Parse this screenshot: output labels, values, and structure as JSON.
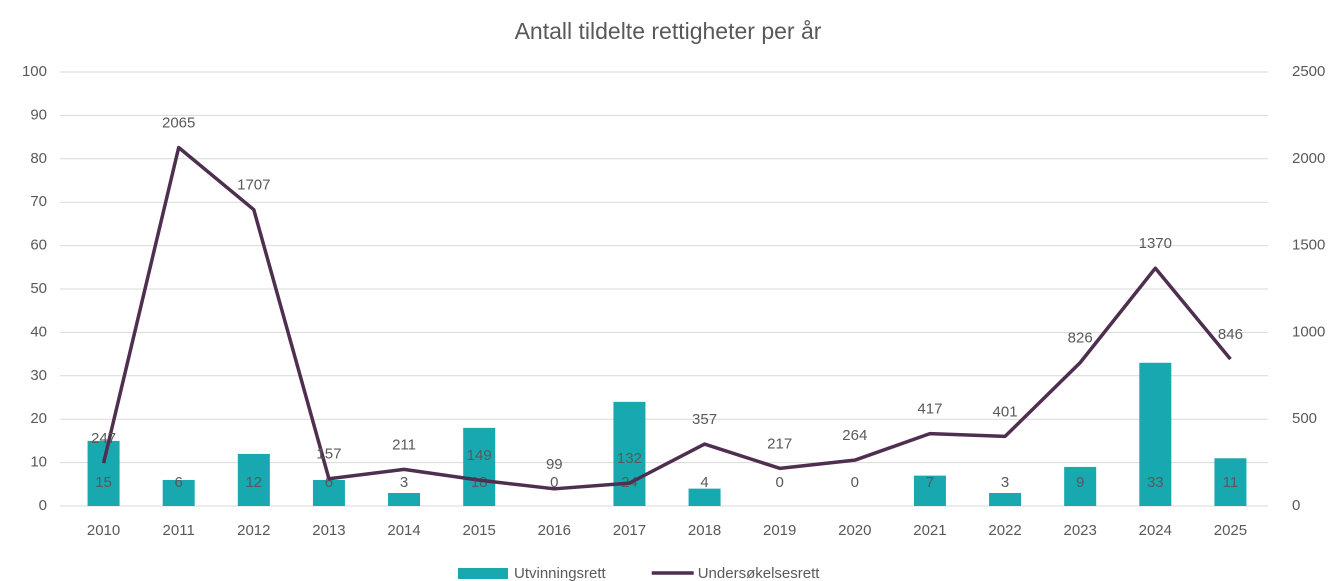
{
  "chart_data": {
    "type": "bar_line",
    "title": "Antall tildelte rettigheter per år",
    "categories": [
      "2010",
      "2011",
      "2012",
      "2013",
      "2014",
      "2015",
      "2016",
      "2017",
      "2018",
      "2019",
      "2020",
      "2021",
      "2022",
      "2023",
      "2024",
      "2025"
    ],
    "series": [
      {
        "name": "Utvinningsrett",
        "type": "bar",
        "color": "#17a8b0",
        "axis": "y",
        "values": [
          15,
          6,
          12,
          6,
          3,
          18,
          0,
          24,
          4,
          0,
          0,
          7,
          3,
          9,
          33,
          11
        ]
      },
      {
        "name": "Undersøkelsesrett",
        "type": "line",
        "color": "#4f2f50",
        "axis": "y2",
        "values": [
          247,
          2065,
          1707,
          157,
          211,
          149,
          99,
          132,
          357,
          217,
          264,
          417,
          401,
          826,
          1370,
          846
        ]
      }
    ],
    "ylim": [
      0,
      100
    ],
    "yticks": [
      0,
      10,
      20,
      30,
      40,
      50,
      60,
      70,
      80,
      90,
      100
    ],
    "y2lim": [
      0,
      2500
    ],
    "y2ticks": [
      0,
      500,
      1000,
      1500,
      2000,
      2500
    ],
    "grid": true,
    "legend": "bottom"
  }
}
